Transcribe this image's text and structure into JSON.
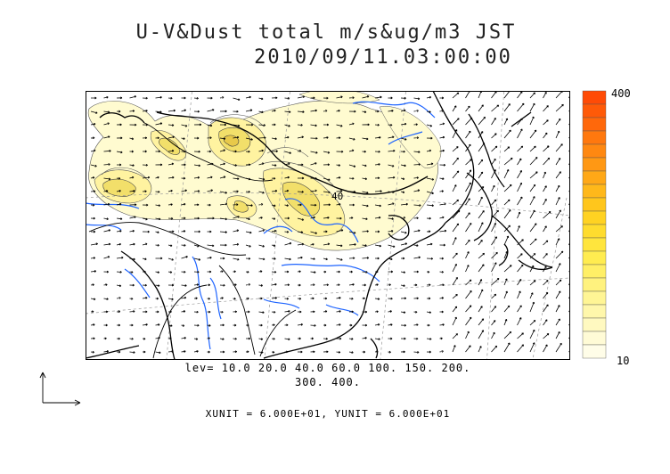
{
  "title": {
    "line1": "U-V&Dust total m/s&ug/m3 JST",
    "line2": "2010/09/11.03:00:00"
  },
  "map": {
    "contour_label": "40",
    "land_color": "#ffffff",
    "dust_fill_light": "#fffbd0",
    "dust_fill_mid": "#fff3a0",
    "dust_fill_high": "#f2df6a",
    "coast_color": "#000000",
    "river_color": "#1e64ff"
  },
  "colorbar": {
    "max_label": "400",
    "min_label": "10",
    "colors": [
      "#fffde8",
      "#fffbd6",
      "#fff9c0",
      "#fff7ab",
      "#fff595",
      "#fff27e",
      "#ffef66",
      "#ffec50",
      "#ffe53d",
      "#ffdc2e",
      "#ffd222",
      "#ffc61c",
      "#ffb81a",
      "#ffa817",
      "#ff9814",
      "#ff8811",
      "#ff780e",
      "#ff680b",
      "#ff5a08",
      "#ff4b06"
    ]
  },
  "levels": {
    "line1": "lev= 10.0 20.0 40.0 60.0 100. 150. 200.",
    "line2": "300. 400."
  },
  "units": "XUNIT = 6.000E+01, YUNIT = 6.000E+01"
}
